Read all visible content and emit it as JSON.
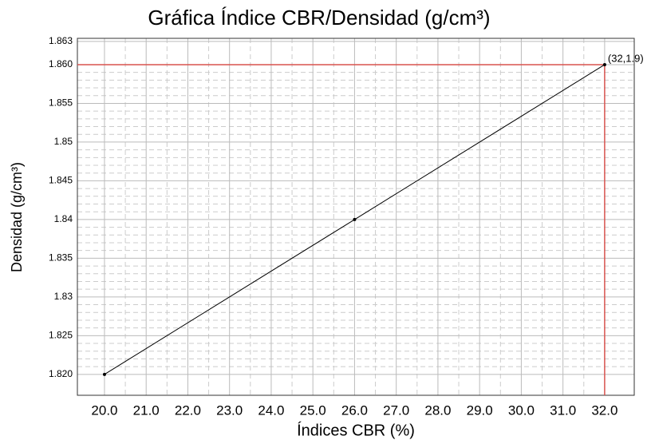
{
  "chart_data": {
    "type": "line",
    "title": "Gráfica Índice CBR/Densidad (g/cm³)",
    "x_label": "Índices CBR (%)",
    "y_label": "Densidad (g/cm³)",
    "x": [
      20,
      26,
      32
    ],
    "series": [
      {
        "name": "Densidad",
        "color": "#000000",
        "values": [
          1.82,
          1.84,
          1.86
        ]
      }
    ],
    "xlim": [
      19.35,
      32.71
    ],
    "ylim": [
      1.8173,
      1.8634
    ],
    "xticks": [
      {
        "value": 20,
        "label": "20.0"
      },
      {
        "value": 21,
        "label": "21.0"
      },
      {
        "value": 22,
        "label": "22.0"
      },
      {
        "value": 23,
        "label": "23.0"
      },
      {
        "value": 24,
        "label": "24.0"
      },
      {
        "value": 25,
        "label": "25.0"
      },
      {
        "value": 26,
        "label": "26.0"
      },
      {
        "value": 27,
        "label": "27.0"
      },
      {
        "value": 28,
        "label": "28.0"
      },
      {
        "value": 29,
        "label": "29.0"
      },
      {
        "value": 30,
        "label": "30.0"
      },
      {
        "value": 31,
        "label": "31.0"
      },
      {
        "value": 32,
        "label": "32.0"
      }
    ],
    "yticks": [
      {
        "value": 1.82,
        "label": "1.820"
      },
      1.825,
      1.83,
      1.835,
      1.84,
      1.845,
      1.85,
      1.855,
      {
        "value": 1.86,
        "label": "1.860"
      },
      1.863
    ],
    "grid": true,
    "annotation": {
      "text": "(32,1.9)",
      "x": 32,
      "y": 1.86,
      "color": "#d9534f"
    }
  }
}
